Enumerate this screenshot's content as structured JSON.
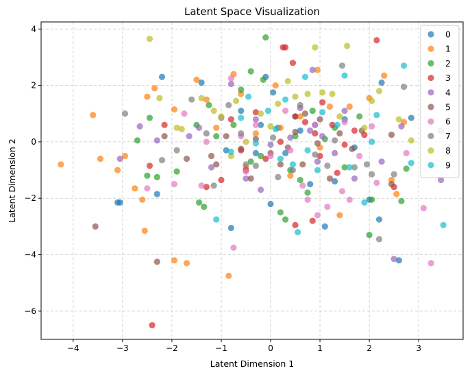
{
  "chart_data": {
    "type": "scatter",
    "title": "Latent Space Visualization",
    "xlabel": "Latent Dimension 1",
    "ylabel": "Latent Dimension 2",
    "xlim": [
      -4.65,
      3.9
    ],
    "ylim": [
      -7.0,
      4.25
    ],
    "xticks": [
      -4,
      -3,
      -2,
      -1,
      0,
      1,
      2,
      3
    ],
    "yticks": [
      -6,
      -4,
      -2,
      0,
      2,
      4
    ],
    "grid": true,
    "legend_position": "top-right",
    "point_alpha": 0.7,
    "series": [
      {
        "name": "0",
        "color": "#1f77b4",
        "points": [
          [
            -3.1,
            -2.15
          ],
          [
            -3.05,
            -2.15
          ],
          [
            -2.2,
            2.3
          ],
          [
            -2.3,
            -1.85
          ],
          [
            -1.4,
            2.1
          ],
          [
            -0.8,
            -3.05
          ],
          [
            -0.1,
            2.3
          ],
          [
            0.05,
            1.75
          ],
          [
            0.5,
            0.9
          ],
          [
            0.15,
            0.5
          ],
          [
            -0.2,
            0.6
          ],
          [
            0.3,
            -0.4
          ],
          [
            0.9,
            0.6
          ],
          [
            1.1,
            -3.0
          ],
          [
            1.3,
            -1.4
          ],
          [
            1.5,
            0.8
          ],
          [
            2.0,
            -2.05
          ],
          [
            2.2,
            -2.75
          ],
          [
            2.25,
            2.1
          ],
          [
            2.6,
            -4.2
          ],
          [
            2.85,
            0.85
          ],
          [
            -0.3,
            -0.4
          ],
          [
            0.6,
            0.4
          ],
          [
            0.8,
            -1.5
          ],
          [
            -0.6,
            1.1
          ],
          [
            1.7,
            -0.2
          ],
          [
            0.0,
            -2.2
          ],
          [
            -0.9,
            -0.3
          ]
        ]
      },
      {
        "name": "1",
        "color": "#ff7f0e",
        "points": [
          [
            -4.25,
            -0.8
          ],
          [
            -3.6,
            0.95
          ],
          [
            -3.45,
            -0.6
          ],
          [
            -3.1,
            -1.0
          ],
          [
            -2.95,
            -0.5
          ],
          [
            -2.75,
            -1.65
          ],
          [
            -2.6,
            -2.05
          ],
          [
            -2.55,
            -3.15
          ],
          [
            -2.5,
            1.6
          ],
          [
            -2.35,
            1.9
          ],
          [
            -1.95,
            -4.2
          ],
          [
            -1.95,
            1.15
          ],
          [
            -1.7,
            -4.3
          ],
          [
            -1.5,
            2.2
          ],
          [
            -0.85,
            -4.75
          ],
          [
            -0.75,
            2.4
          ],
          [
            -1.3,
            1.5
          ],
          [
            -1.1,
            0.5
          ],
          [
            -0.6,
            1.7
          ],
          [
            0.1,
            2.0
          ],
          [
            0.6,
            0.9
          ],
          [
            0.95,
            2.55
          ],
          [
            1.2,
            1.25
          ],
          [
            1.6,
            1.25
          ],
          [
            2.0,
            1.55
          ],
          [
            2.3,
            2.35
          ],
          [
            2.45,
            -1.35
          ],
          [
            2.55,
            -1.85
          ],
          [
            2.7,
            0.7
          ],
          [
            0.4,
            -1.2
          ],
          [
            1.0,
            -0.2
          ],
          [
            -0.3,
            0.3
          ],
          [
            1.4,
            -2.6
          ],
          [
            -0.5,
            -0.9
          ],
          [
            0.2,
            0.5
          ]
        ]
      },
      {
        "name": "2",
        "color": "#2ca02c",
        "points": [
          [
            -2.7,
            0.05
          ],
          [
            -2.5,
            -1.2
          ],
          [
            -2.45,
            0.85
          ],
          [
            -2.3,
            -1.25
          ],
          [
            -1.9,
            -1.05
          ],
          [
            -1.45,
            -2.15
          ],
          [
            -1.35,
            -2.3
          ],
          [
            -1.25,
            1.3
          ],
          [
            -1.1,
            0.2
          ],
          [
            -0.75,
            0.6
          ],
          [
            -0.6,
            1.85
          ],
          [
            -0.4,
            2.5
          ],
          [
            -0.15,
            2.2
          ],
          [
            -0.1,
            3.7
          ],
          [
            0.2,
            -2.5
          ],
          [
            0.3,
            -2.75
          ],
          [
            0.4,
            -1.0
          ],
          [
            0.6,
            -1.35
          ],
          [
            0.85,
            1.1
          ],
          [
            1.1,
            0.1
          ],
          [
            1.5,
            -0.9
          ],
          [
            2.0,
            -3.3
          ],
          [
            2.05,
            -2.05
          ],
          [
            2.65,
            -2.1
          ],
          [
            2.75,
            -0.95
          ],
          [
            -0.2,
            -0.5
          ],
          [
            0.5,
            0.2
          ],
          [
            1.3,
            0.5
          ],
          [
            -1.5,
            0.6
          ],
          [
            0.75,
            -1.8
          ],
          [
            -0.4,
            -0.7
          ],
          [
            1.8,
            0.9
          ]
        ]
      },
      {
        "name": "3",
        "color": "#d62728",
        "points": [
          [
            -2.4,
            -6.5
          ],
          [
            -2.45,
            -0.85
          ],
          [
            -2.15,
            0.6
          ],
          [
            -1.3,
            -1.6
          ],
          [
            -1.0,
            -1.35
          ],
          [
            -0.8,
            0.8
          ],
          [
            -0.5,
            -1.0
          ],
          [
            -0.3,
            1.05
          ],
          [
            0.25,
            3.35
          ],
          [
            0.3,
            3.35
          ],
          [
            0.45,
            2.8
          ],
          [
            0.5,
            0.9
          ],
          [
            0.7,
            0.7
          ],
          [
            0.85,
            -2.8
          ],
          [
            1.05,
            1.4
          ],
          [
            1.25,
            0.6
          ],
          [
            1.5,
            -0.1
          ],
          [
            1.9,
            0.25
          ],
          [
            2.15,
            3.6
          ],
          [
            2.5,
            -1.6
          ],
          [
            1.0,
            -0.5
          ],
          [
            0.2,
            0.0
          ],
          [
            -0.1,
            -0.6
          ],
          [
            1.7,
            0.4
          ],
          [
            0.5,
            -2.95
          ],
          [
            0.9,
            0.3
          ],
          [
            -0.6,
            -0.3
          ],
          [
            1.35,
            -1.1
          ]
        ]
      },
      {
        "name": "4",
        "color": "#9467bd",
        "points": [
          [
            -3.05,
            -0.6
          ],
          [
            -2.65,
            0.55
          ],
          [
            -2.3,
            0.05
          ],
          [
            -1.65,
            0.2
          ],
          [
            -1.45,
            0.5
          ],
          [
            -1.0,
            0.85
          ],
          [
            -0.8,
            2.05
          ],
          [
            -0.5,
            -1.3
          ],
          [
            -0.3,
            0.8
          ],
          [
            0.0,
            -0.1
          ],
          [
            0.4,
            0.15
          ],
          [
            0.6,
            1.2
          ],
          [
            0.8,
            0.4
          ],
          [
            0.85,
            2.55
          ],
          [
            1.05,
            0.2
          ],
          [
            1.3,
            -0.4
          ],
          [
            1.7,
            -1.3
          ],
          [
            2.25,
            -0.7
          ],
          [
            2.5,
            -4.15
          ],
          [
            2.65,
            0.55
          ],
          [
            3.45,
            -1.35
          ],
          [
            3.45,
            0.4
          ],
          [
            -0.2,
            -1.7
          ],
          [
            0.95,
            -0.7
          ],
          [
            -1.2,
            -0.9
          ],
          [
            1.5,
            1.1
          ]
        ]
      },
      {
        "name": "5",
        "color": "#8c564b",
        "points": [
          [
            -3.55,
            -3.0
          ],
          [
            -2.3,
            -4.25
          ],
          [
            -2.15,
            0.2
          ],
          [
            -1.7,
            -0.6
          ],
          [
            -1.2,
            -0.5
          ],
          [
            -0.9,
            0.2
          ],
          [
            -0.6,
            -0.25
          ],
          [
            -0.4,
            -1.3
          ],
          [
            0.0,
            -0.4
          ],
          [
            0.2,
            -0.8
          ],
          [
            0.5,
            0.35
          ],
          [
            0.65,
            -0.8
          ],
          [
            0.95,
            -0.05
          ],
          [
            1.2,
            -1.3
          ],
          [
            1.4,
            0.3
          ],
          [
            1.65,
            -0.25
          ],
          [
            1.85,
            0.4
          ],
          [
            2.45,
            -1.5
          ],
          [
            2.45,
            0.25
          ],
          [
            -1.1,
            -0.8
          ],
          [
            0.35,
            -0.2
          ],
          [
            1.0,
            0.8
          ],
          [
            -0.3,
            0.1
          ],
          [
            0.7,
            1.0
          ]
        ]
      },
      {
        "name": "6",
        "color": "#e377c2",
        "points": [
          [
            -2.5,
            -1.65
          ],
          [
            -1.95,
            -1.5
          ],
          [
            -1.75,
            1.0
          ],
          [
            -1.4,
            -1.55
          ],
          [
            -0.8,
            2.25
          ],
          [
            -0.75,
            -3.75
          ],
          [
            -0.5,
            -1.05
          ],
          [
            -0.3,
            0.6
          ],
          [
            0.0,
            -0.5
          ],
          [
            0.3,
            1.1
          ],
          [
            0.65,
            -1.55
          ],
          [
            0.75,
            -2.05
          ],
          [
            0.95,
            -2.6
          ],
          [
            1.15,
            -2.3
          ],
          [
            1.45,
            -1.75
          ],
          [
            1.6,
            -2.05
          ],
          [
            2.05,
            0.55
          ],
          [
            2.15,
            -1.45
          ],
          [
            2.75,
            -0.4
          ],
          [
            3.1,
            -2.35
          ],
          [
            3.25,
            -4.3
          ],
          [
            1.5,
            0.7
          ],
          [
            -1.3,
            0.0
          ],
          [
            0.4,
            -0.3
          ],
          [
            -0.6,
            0.2
          ],
          [
            0.9,
            0.6
          ],
          [
            1.8,
            -0.5
          ]
        ]
      },
      {
        "name": "7",
        "color": "#7f7f7f",
        "points": [
          [
            -2.95,
            1.0
          ],
          [
            -2.2,
            -0.65
          ],
          [
            -1.6,
            1.5
          ],
          [
            -1.3,
            0.3
          ],
          [
            -1.15,
            -1.55
          ],
          [
            -0.85,
            1.3
          ],
          [
            -0.6,
            0.3
          ],
          [
            -0.3,
            -0.85
          ],
          [
            0.05,
            0.15
          ],
          [
            0.15,
            -1.25
          ],
          [
            0.45,
            -1.0
          ],
          [
            0.9,
            -0.45
          ],
          [
            1.15,
            -0.85
          ],
          [
            1.45,
            2.7
          ],
          [
            1.7,
            -0.9
          ],
          [
            1.95,
            -0.8
          ],
          [
            2.05,
            -1.15
          ],
          [
            2.2,
            -3.45
          ],
          [
            2.5,
            -1.15
          ],
          [
            2.7,
            1.95
          ],
          [
            -0.5,
            -0.8
          ],
          [
            0.6,
            1.3
          ],
          [
            -1.9,
            -0.3
          ],
          [
            1.3,
            0.05
          ]
        ]
      },
      {
        "name": "8",
        "color": "#bcbd22",
        "points": [
          [
            -2.45,
            3.65
          ],
          [
            -2.25,
            1.55
          ],
          [
            -1.8,
            0.45
          ],
          [
            -1.4,
            1.55
          ],
          [
            -1.15,
            1.1
          ],
          [
            -1.0,
            0.9
          ],
          [
            -0.7,
            1.45
          ],
          [
            -0.5,
            0.0
          ],
          [
            -0.2,
            1.0
          ],
          [
            0.15,
            1.35
          ],
          [
            0.5,
            1.6
          ],
          [
            0.75,
            1.7
          ],
          [
            0.9,
            3.35
          ],
          [
            1.05,
            1.75
          ],
          [
            1.25,
            1.7
          ],
          [
            1.55,
            3.4
          ],
          [
            2.05,
            1.45
          ],
          [
            2.2,
            1.8
          ],
          [
            2.6,
            0.8
          ],
          [
            2.85,
            0.05
          ],
          [
            -1.9,
            0.5
          ],
          [
            0.0,
            0.55
          ],
          [
            0.35,
            2.15
          ],
          [
            1.4,
            0.9
          ],
          [
            -0.8,
            -0.5
          ],
          [
            1.9,
            0.5
          ]
        ]
      },
      {
        "name": "9",
        "color": "#17becf",
        "points": [
          [
            -1.1,
            -2.75
          ],
          [
            -0.8,
            -0.35
          ],
          [
            -0.6,
            0.85
          ],
          [
            -0.3,
            -0.05
          ],
          [
            -0.05,
            1.1
          ],
          [
            0.1,
            0.45
          ],
          [
            0.3,
            1.5
          ],
          [
            0.45,
            -0.8
          ],
          [
            0.55,
            -3.2
          ],
          [
            0.75,
            -0.3
          ],
          [
            0.95,
            -1.0
          ],
          [
            1.35,
            0.6
          ],
          [
            1.5,
            2.35
          ],
          [
            1.6,
            -0.9
          ],
          [
            2.05,
            0.0
          ],
          [
            2.15,
            0.95
          ],
          [
            2.7,
            2.7
          ],
          [
            2.85,
            -0.75
          ],
          [
            3.5,
            -2.95
          ],
          [
            1.05,
            1.05
          ],
          [
            -0.45,
            1.6
          ],
          [
            0.7,
            2.3
          ],
          [
            0.2,
            -0.6
          ],
          [
            1.9,
            -2.15
          ]
        ]
      }
    ]
  }
}
